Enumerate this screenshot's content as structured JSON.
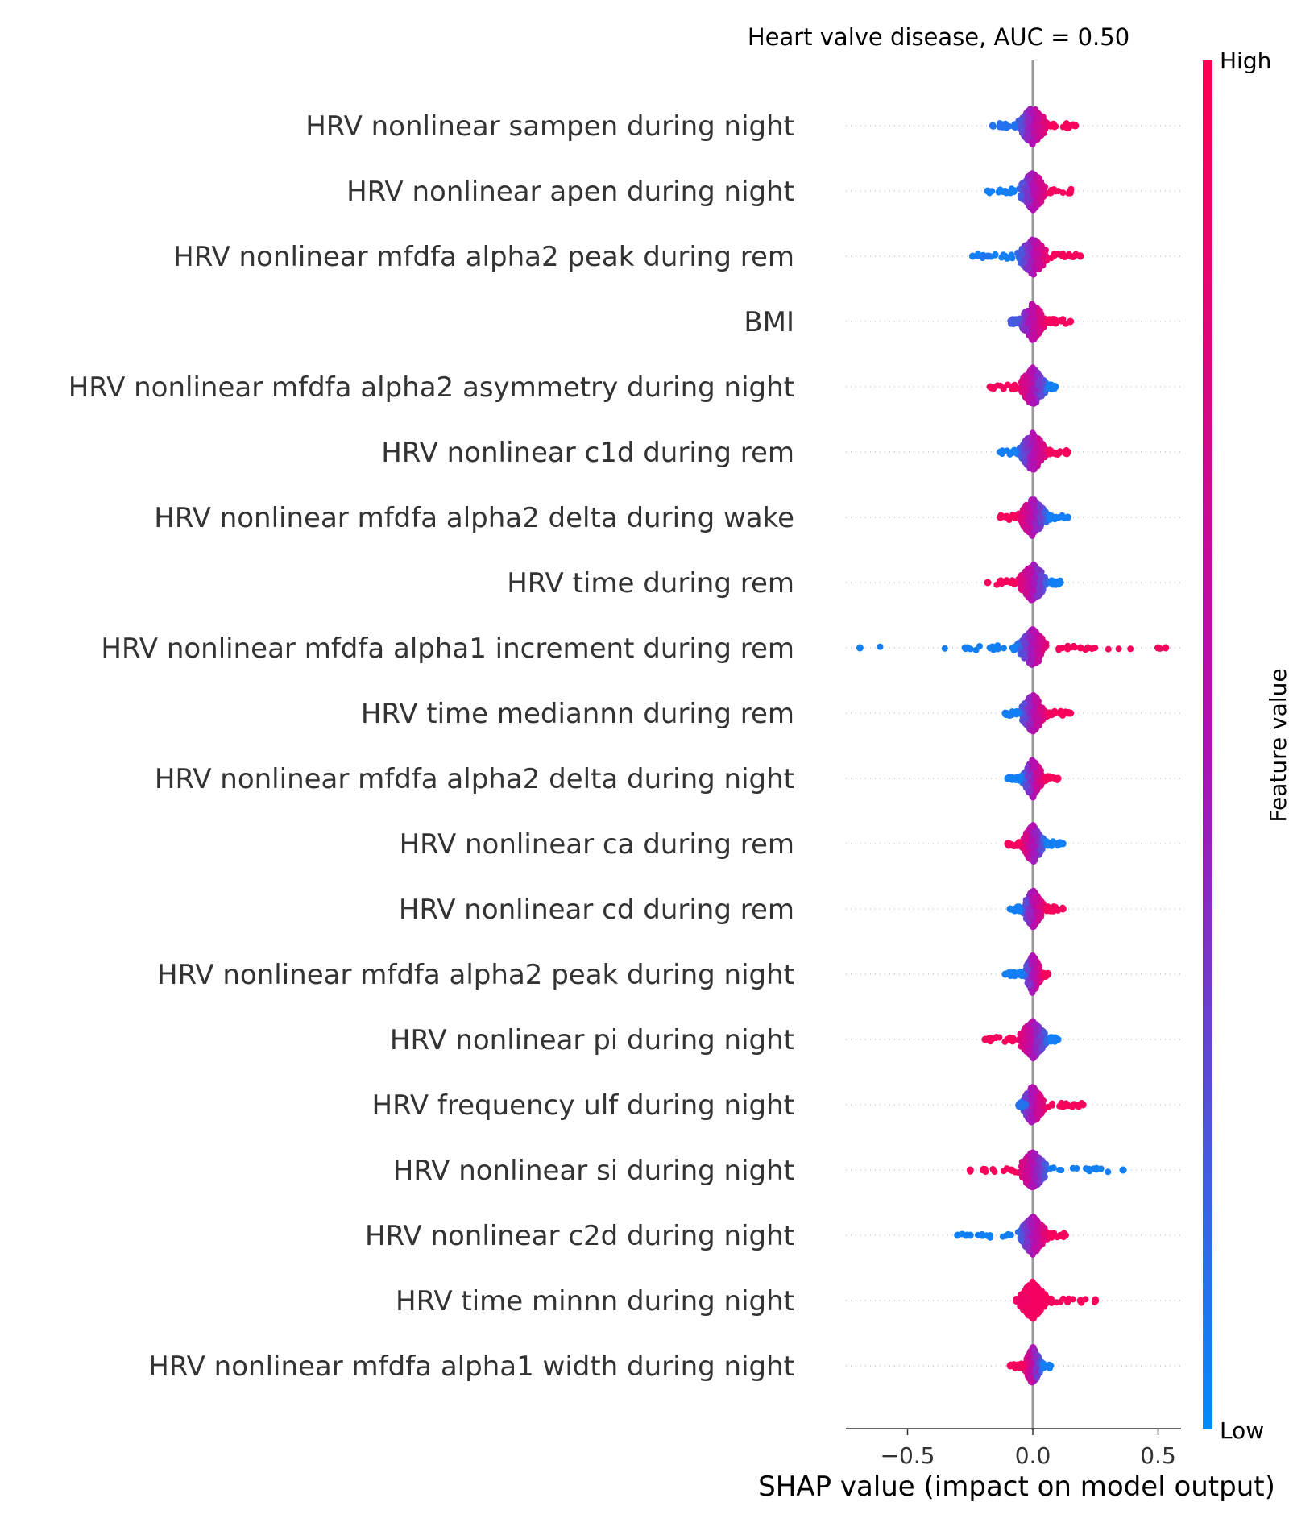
{
  "chart_data": {
    "type": "scatter",
    "subtype": "shap-beeswarm",
    "title": "Heart valve disease, AUC =  0.50",
    "xlabel": "SHAP value (impact on model output)",
    "xlim": [
      -0.75,
      0.6
    ],
    "xticks": [
      -0.5,
      0.0,
      0.5
    ],
    "xtick_labels": [
      "−0.5",
      "0.0",
      "0.5"
    ],
    "colorbar": {
      "label": "Feature value",
      "high": "High",
      "low": "Low",
      "high_color": "#ff0052",
      "mid_color": "#b10fb4",
      "low_color": "#008bfb"
    },
    "features": [
      {
        "name": "HRV nonlinear sampen during night",
        "min": -0.16,
        "max": 0.18,
        "extremes": [
          {
            "x": -0.16,
            "v": 0.1
          },
          {
            "x": 0.17,
            "v": 0.95
          }
        ]
      },
      {
        "name": "HRV nonlinear apen during night",
        "min": -0.19,
        "max": 0.16,
        "extremes": [
          {
            "x": -0.18,
            "v": 0.05
          },
          {
            "x": 0.15,
            "v": 0.95
          }
        ]
      },
      {
        "name": "HRV nonlinear mfdfa alpha2 peak during rem",
        "min": -0.24,
        "max": 0.19,
        "extremes": [
          {
            "x": -0.24,
            "v": 0.05
          },
          {
            "x": -0.2,
            "v": 0.1
          },
          {
            "x": -0.18,
            "v": 0.1
          },
          {
            "x": 0.19,
            "v": 0.95
          },
          {
            "x": 0.15,
            "v": 0.95
          }
        ]
      },
      {
        "name": "BMI",
        "min": -0.09,
        "max": 0.15,
        "extremes": [
          {
            "x": -0.08,
            "v": 0.2
          },
          {
            "x": 0.15,
            "v": 0.95
          }
        ]
      },
      {
        "name": "HRV nonlinear mfdfa alpha2 asymmetry during night",
        "min": -0.17,
        "max": 0.09,
        "extremes": [
          {
            "x": -0.17,
            "v": 0.95
          },
          {
            "x": 0.09,
            "v": 0.05
          }
        ]
      },
      {
        "name": "HRV nonlinear c1d during rem",
        "min": -0.13,
        "max": 0.14,
        "extremes": [
          {
            "x": -0.13,
            "v": 0.05
          },
          {
            "x": 0.14,
            "v": 0.95
          }
        ]
      },
      {
        "name": "HRV nonlinear mfdfa alpha2 delta during wake",
        "min": -0.13,
        "max": 0.14,
        "extremes": [
          {
            "x": -0.13,
            "v": 0.95
          },
          {
            "x": 0.14,
            "v": 0.05
          }
        ]
      },
      {
        "name": "HRV time during rem",
        "min": -0.18,
        "max": 0.11,
        "extremes": [
          {
            "x": -0.18,
            "v": 0.95
          },
          {
            "x": -0.13,
            "v": 0.95
          },
          {
            "x": 0.11,
            "v": 0.05
          }
        ]
      },
      {
        "name": "HRV nonlinear mfdfa alpha1 increment during rem",
        "min": -0.69,
        "max": 0.53,
        "extremes": [
          {
            "x": -0.69,
            "v": 0.05
          },
          {
            "x": -0.26,
            "v": 0.05
          },
          {
            "x": -0.27,
            "v": 0.05
          },
          {
            "x": -0.17,
            "v": 0.05
          },
          {
            "x": -0.15,
            "v": 0.05
          },
          {
            "x": -0.08,
            "v": 0.05
          },
          {
            "x": 0.14,
            "v": 0.95
          },
          {
            "x": 0.19,
            "v": 0.95
          },
          {
            "x": 0.22,
            "v": 0.95
          },
          {
            "x": 0.5,
            "v": 0.95
          },
          {
            "x": 0.53,
            "v": 0.95
          }
        ]
      },
      {
        "name": "HRV time mediannn during rem",
        "min": -0.11,
        "max": 0.15,
        "extremes": [
          {
            "x": -0.11,
            "v": 0.05
          },
          {
            "x": -0.06,
            "v": 0.05
          },
          {
            "x": 0.15,
            "v": 0.95
          }
        ]
      },
      {
        "name": "HRV nonlinear mfdfa alpha2 delta during night",
        "min": -0.1,
        "max": 0.1,
        "extremes": [
          {
            "x": -0.1,
            "v": 0.05
          },
          {
            "x": 0.1,
            "v": 0.95
          }
        ]
      },
      {
        "name": "HRV nonlinear ca during rem",
        "min": -0.1,
        "max": 0.12,
        "extremes": [
          {
            "x": -0.1,
            "v": 0.95
          },
          {
            "x": 0.12,
            "v": 0.05
          }
        ]
      },
      {
        "name": "HRV nonlinear cd during rem",
        "min": -0.09,
        "max": 0.12,
        "extremes": [
          {
            "x": -0.09,
            "v": 0.05
          },
          {
            "x": 0.12,
            "v": 0.95
          }
        ]
      },
      {
        "name": "HRV nonlinear mfdfa alpha2 peak during night",
        "min": -0.11,
        "max": 0.06,
        "extremes": [
          {
            "x": -0.11,
            "v": 0.05
          },
          {
            "x": 0.06,
            "v": 0.95
          }
        ]
      },
      {
        "name": "HRV nonlinear pi during night",
        "min": -0.19,
        "max": 0.1,
        "extremes": [
          {
            "x": -0.19,
            "v": 0.95
          },
          {
            "x": 0.1,
            "v": 0.05
          }
        ]
      },
      {
        "name": "HRV frequency ulf during night",
        "min": -0.03,
        "max": 0.2,
        "extremes": [
          {
            "x": -0.03,
            "v": 0.1
          },
          {
            "x": 0.2,
            "v": 0.95
          }
        ]
      },
      {
        "name": "HRV nonlinear si during night",
        "min": -0.25,
        "max": 0.36,
        "extremes": [
          {
            "x": -0.25,
            "v": 0.95
          },
          {
            "x": 0.36,
            "v": 0.05
          }
        ]
      },
      {
        "name": "HRV nonlinear c2d during night",
        "min": -0.3,
        "max": 0.13,
        "extremes": [
          {
            "x": -0.3,
            "v": 0.05
          },
          {
            "x": -0.25,
            "v": 0.05
          },
          {
            "x": 0.13,
            "v": 0.95
          }
        ]
      },
      {
        "name": "HRV time minnn during night",
        "min": -0.02,
        "max": 0.25,
        "extremes": [
          {
            "x": -0.02,
            "v": 0.9
          },
          {
            "x": 0.25,
            "v": 0.95
          },
          {
            "x": 0.19,
            "v": 0.95
          }
        ]
      },
      {
        "name": "HRV nonlinear mfdfa alpha1 width during night",
        "min": -0.09,
        "max": 0.07,
        "extremes": [
          {
            "x": -0.09,
            "v": 0.95
          },
          {
            "x": 0.07,
            "v": 0.05
          }
        ]
      }
    ]
  }
}
